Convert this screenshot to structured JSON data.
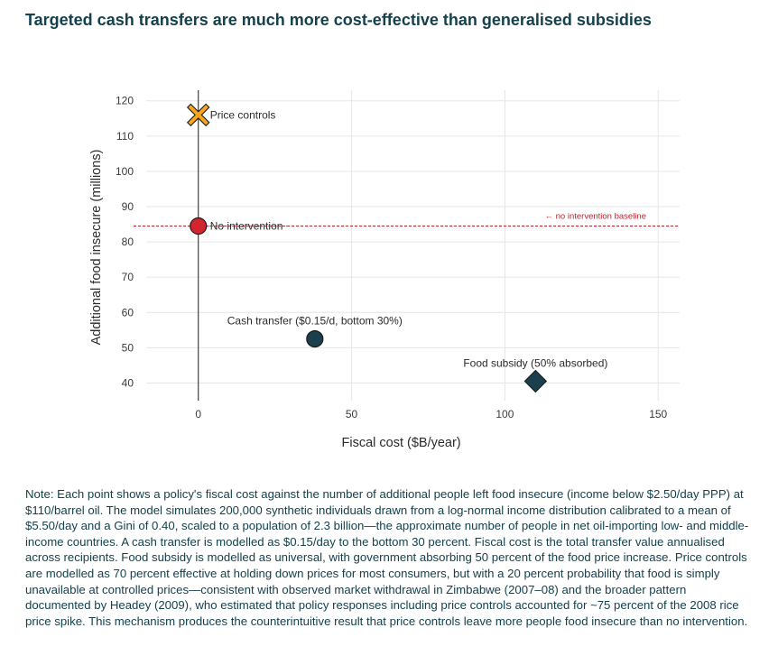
{
  "title": "Targeted cash transfers are much more cost-effective than generalised subsidies",
  "note": "Note: Each point shows a policy's fiscal cost against the number of additional people left food insecure (income below $2.50/day PPP) at $110/barrel oil. The model simulates 200,000 synthetic individuals drawn from a log-normal income distribution calibrated to a mean of $5.50/day and a Gini of 0.40, scaled to a population of 2.3 billion—the approximate number of people in net oil-importing low- and middle-income countries. A cash transfer is modelled as $0.15/day to the bottom 30 percent. Fiscal cost is the total transfer value annualised across recipients. Food subsidy is modelled as universal, with government absorbing 50 percent of the food price increase. Price controls are modelled as 70 percent effective at holding down prices for most consumers, but with a 20 percent probability that food is simply unavailable at controlled prices—consistent with observed market withdrawal in Zimbabwe (2007–08) and the broader pattern documented by Headey (2009), who estimated that policy responses including price controls accounted for ~75 percent of the 2008 rice price spike. This mechanism produces the counterintuitive result that price controls leave more people food insecure than no intervention.",
  "colors": {
    "title": "#14414d",
    "baseline": "#c0202a",
    "dark_teal": "#1b3f4d",
    "red": "#d3252e",
    "orange": "#f5a623",
    "grid": "#e6e6e6"
  },
  "chart_data": {
    "type": "scatter",
    "xlabel": "Fiscal cost ($B/year)",
    "ylabel": "Additional food insecure (millions)",
    "xlim": [
      -17,
      157
    ],
    "ylim": [
      35,
      123
    ],
    "xticks": [
      0,
      50,
      100,
      150
    ],
    "yticks": [
      40,
      50,
      60,
      70,
      80,
      90,
      100,
      110,
      120
    ],
    "grid": true,
    "vertical_line_x": 0,
    "baseline": {
      "y": 84.5,
      "label": "← no intervention baseline"
    },
    "points": [
      {
        "name": "Price controls",
        "label": "Price controls",
        "x": 0,
        "y": 116,
        "marker": "x",
        "color": "#f5a623",
        "label_pos": "right"
      },
      {
        "name": "No intervention",
        "label": "No intervention",
        "x": 0,
        "y": 84.5,
        "marker": "circle",
        "color": "#d3252e",
        "label_pos": "right"
      },
      {
        "name": "Cash transfer",
        "label": "Cash transfer ($0.15/d, bottom 30%)",
        "x": 38,
        "y": 52.5,
        "marker": "circle",
        "color": "#1b3f4d",
        "label_pos": "above"
      },
      {
        "name": "Food subsidy",
        "label": "Food subsidy (50% absorbed)",
        "x": 110,
        "y": 40.5,
        "marker": "diamond",
        "color": "#1b3f4d",
        "label_pos": "above"
      }
    ]
  }
}
